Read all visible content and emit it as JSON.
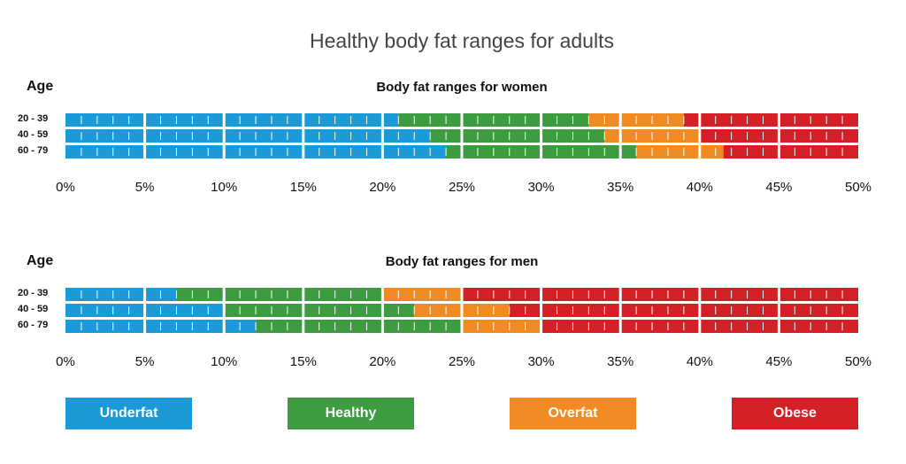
{
  "chart_data": {
    "type": "bar",
    "title": "Healthy body fat ranges for adults",
    "xlim": [
      0,
      50
    ],
    "tick_labels": [
      "0%",
      "5%",
      "10%",
      "15%",
      "20%",
      "25%",
      "30%",
      "35%",
      "40%",
      "45%",
      "50%"
    ],
    "colors": {
      "Underfat": "#1b9ad7",
      "Healthy": "#3c9c3f",
      "Overfat": "#f08b23",
      "Obese": "#d32026"
    },
    "legend": [
      "Underfat",
      "Healthy",
      "Overfat",
      "Obese"
    ],
    "charts": [
      {
        "subtitle": "Body fat ranges for women",
        "ylabel": "Age",
        "rows": [
          {
            "age": "20 - 39",
            "underfat_to": 21,
            "healthy_to": 33,
            "overfat_to": 39,
            "obese_to": 50
          },
          {
            "age": "40 - 59",
            "underfat_to": 23,
            "healthy_to": 34,
            "overfat_to": 40,
            "obese_to": 50
          },
          {
            "age": "60 - 79",
            "underfat_to": 24,
            "healthy_to": 36,
            "overfat_to": 41.5,
            "obese_to": 50
          }
        ]
      },
      {
        "subtitle": "Body fat ranges for men",
        "ylabel": "Age",
        "rows": [
          {
            "age": "20 - 39",
            "underfat_to": 7,
            "healthy_to": 20,
            "overfat_to": 25,
            "obese_to": 50
          },
          {
            "age": "40 - 59",
            "underfat_to": 10,
            "healthy_to": 22,
            "overfat_to": 28,
            "obese_to": 50
          },
          {
            "age": "60 - 79",
            "underfat_to": 12,
            "healthy_to": 25,
            "overfat_to": 30,
            "obese_to": 50
          }
        ]
      }
    ]
  }
}
